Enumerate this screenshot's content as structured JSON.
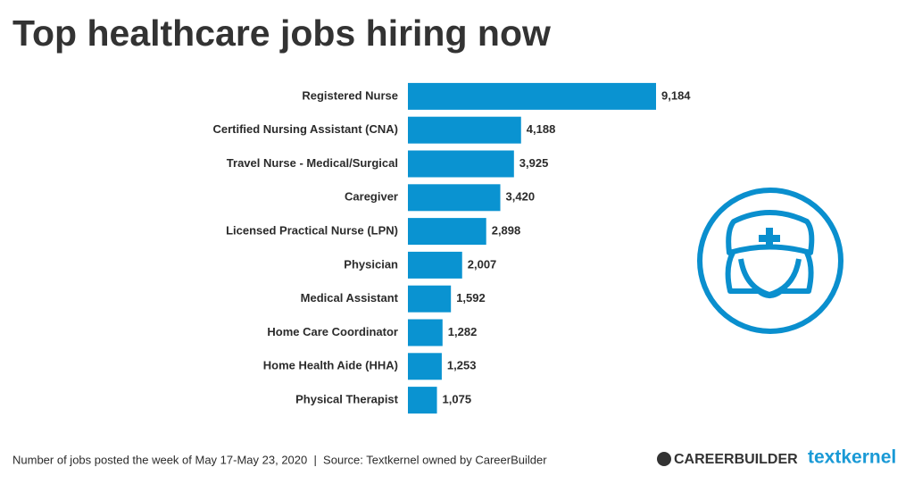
{
  "chart_data": {
    "type": "bar",
    "title": "Top healthcare jobs hiring now",
    "categories": [
      "Registered Nurse",
      "Certified Nursing Assistant (CNA)",
      "Travel Nurse - Medical/Surgical",
      "Caregiver",
      "Licensed Practical Nurse (LPN)",
      "Physician",
      "Medical Assistant",
      "Home Care Coordinator",
      "Home Health Aide (HHA)",
      "Physical Therapist"
    ],
    "values": [
      9184,
      4188,
      3925,
      3420,
      2898,
      2007,
      1592,
      1282,
      1253,
      1075
    ],
    "value_labels": [
      "9,184",
      "4,188",
      "3,925",
      "3,420",
      "2,898",
      "2,007",
      "1,592",
      "1,282",
      "1,253",
      "1,075"
    ],
    "color": "#0a93d1",
    "note": "Number of jobs posted the week of May 17-May 23, 2020  |  Source: Textkernel owned by CareerBuilder"
  },
  "logos": [
    "CAREERBUILDER",
    "textkernel"
  ]
}
